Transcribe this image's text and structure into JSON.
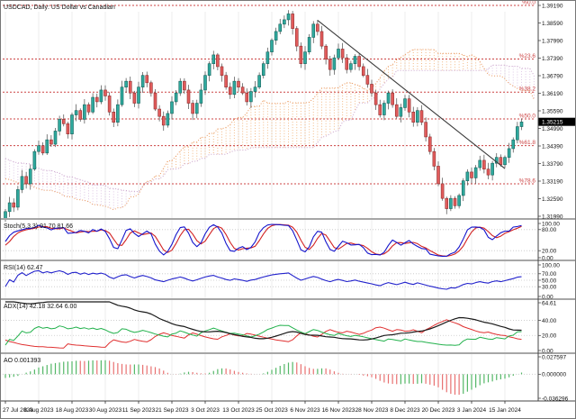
{
  "window": {
    "title": "USDCAD, Daily: US Dollar vs Canadian"
  },
  "colors": {
    "background": "#ffffff",
    "candle_up": "#2fa99d",
    "candle_up_border": "#17635c",
    "candle_down": "#e25c5c",
    "candle_down_border": "#8f2f2f",
    "wick": "#4a4a4a",
    "cloud_span_a": "#e8945a",
    "cloud_span_b": "#c9a0c9",
    "cloud_hatch_bull": "#f0a35e",
    "cloud_hatch_bear": "#d2b4dc",
    "fibonacci": "#cc4444",
    "trendline": "#3a3a3a",
    "grid_vertical": "#ececec",
    "grid_dotted": "#c8c8c8",
    "divider": "#a6a6a6",
    "stoch_main": "#1414cc",
    "stoch_signal": "#d22222",
    "rsi_line": "#2222cc",
    "adx_main": "#1a1a1a",
    "adx_plus_di": "#22b14c",
    "adx_minus_di": "#e03030",
    "ao_up": "#53b766",
    "ao_down": "#e87070",
    "price_tag_bg": "#000000",
    "price_tag_text": "#ffffff"
  },
  "chart_data": [
    {
      "name": "price-panel",
      "type": "candlestick",
      "symbol": "USDCAD",
      "period": "Daily",
      "label": "USDCAD, Daily: US Dollar vs Canadian",
      "overlay": "Ichimoku cloud (dotted Senkou Span A / Senkou Span B)",
      "x_tick_labels": [
        "27 Jul 2023",
        "8 Aug 2023",
        "18 Aug 2023",
        "30 Aug 2023",
        "11 Sep 2023",
        "21 Sep 2023",
        "3 Oct 2023",
        "13 Oct 2023",
        "25 Oct 2023",
        "6 Nov 2023",
        "16 Nov 2023",
        "28 Nov 2023",
        "8 Dec 2023",
        "20 Dec 2023",
        "3 Jan 2024",
        "15 Jan 2024"
      ],
      "candles_per_tick": 8,
      "ylim": [
        1.3199,
        1.3919
      ],
      "y_axis_labels": [
        "1.39190",
        "1.38590",
        "1.37990",
        "1.37390",
        "1.36790",
        "1.36190",
        "1.35590",
        "1.34990",
        "1.34390",
        "1.33790",
        "1.33190",
        "1.32590",
        "1.31990"
      ],
      "current_price": "1.35215",
      "closes": [
        1.3215,
        1.3245,
        1.323,
        1.329,
        1.3335,
        1.331,
        1.336,
        1.342,
        1.344,
        1.3415,
        1.346,
        1.3445,
        1.349,
        1.353,
        1.3515,
        1.348,
        1.3545,
        1.356,
        1.353,
        1.358,
        1.3555,
        1.3605,
        1.359,
        1.363,
        1.361,
        1.3555,
        1.352,
        1.358,
        1.364,
        1.366,
        1.362,
        1.3585,
        1.364,
        1.368,
        1.3655,
        1.362,
        1.3565,
        1.354,
        1.351,
        1.355,
        1.359,
        1.362,
        1.366,
        1.363,
        1.3585,
        1.355,
        1.3585,
        1.363,
        1.368,
        1.372,
        1.375,
        1.371,
        1.368,
        1.364,
        1.3615,
        1.366,
        1.364,
        1.362,
        1.359,
        1.3625,
        1.364,
        1.368,
        1.372,
        1.376,
        1.38,
        1.383,
        1.3855,
        1.387,
        1.389,
        1.384,
        1.378,
        1.372,
        1.376,
        1.381,
        1.3855,
        1.383,
        1.378,
        1.3735,
        1.37,
        1.374,
        1.377,
        1.374,
        1.37,
        1.372,
        1.3745,
        1.371,
        1.368,
        1.365,
        1.362,
        1.358,
        1.3545,
        1.3585,
        1.362,
        1.358,
        1.354,
        1.357,
        1.36,
        1.3555,
        1.352,
        1.356,
        1.352,
        1.347,
        1.342,
        1.337,
        1.331,
        1.326,
        1.3225,
        1.326,
        1.3235,
        1.327,
        1.332,
        1.335,
        1.333,
        1.3365,
        1.339,
        1.336,
        1.334,
        1.338,
        1.34,
        1.3375,
        1.34,
        1.343,
        1.346,
        1.3505,
        1.3521
      ],
      "fib_levels": [
        {
          "label": "%0.0",
          "price": 1.3919
        },
        {
          "label": "%23.6",
          "price": 1.37361
        },
        {
          "label": "%38.2",
          "price": 1.36229
        },
        {
          "label": "%50.0",
          "price": 1.35315
        },
        {
          "label": "%61.8",
          "price": 1.34401
        },
        {
          "label": "%78.6",
          "price": 1.33099
        }
      ],
      "trendline": {
        "c1": 75,
        "p1": 1.3868,
        "c2": 120,
        "p2": 1.3362
      }
    },
    {
      "name": "stochastic-panel",
      "type": "line",
      "label": "Stoch(5,3,3) 91.70 81.66",
      "params": "5,3,3",
      "current": {
        "main": 91.7,
        "signal": 81.66
      },
      "ylim": [
        0,
        100
      ],
      "levels": [
        80,
        20
      ],
      "y_axis_labels": [
        "100.00",
        "80.00",
        "20.00",
        "0.00"
      ]
    },
    {
      "name": "rsi-panel",
      "type": "line",
      "label": "RSI(14) 62.47",
      "params": "14",
      "current": {
        "main": 62.47
      },
      "ylim": [
        0,
        100
      ],
      "levels": [
        70,
        50,
        30
      ],
      "y_axis_labels": [
        "100.00",
        "70.00",
        "50.00",
        "30.00",
        "0.00"
      ]
    },
    {
      "name": "adx-panel",
      "type": "line",
      "label": "ADX(14) 42.18 32.64 6.00",
      "params": "14",
      "current": {
        "adx": 42.18,
        "plus_di": 32.64,
        "minus_di": 6.0
      },
      "ylim": [
        0,
        64.61
      ],
      "levels": [
        40,
        20
      ],
      "y_axis_labels": [
        "64.61",
        "40.00",
        "20.00",
        "0.00"
      ]
    },
    {
      "name": "ao-panel",
      "type": "bar",
      "label": "AO 0.001393",
      "current": {
        "value": 0.001393
      },
      "ylim": [
        -0.036296,
        0.027597
      ],
      "levels": [
        0
      ],
      "y_axis_labels": [
        "0.027597",
        "0.000000",
        "-0.036296"
      ]
    }
  ]
}
